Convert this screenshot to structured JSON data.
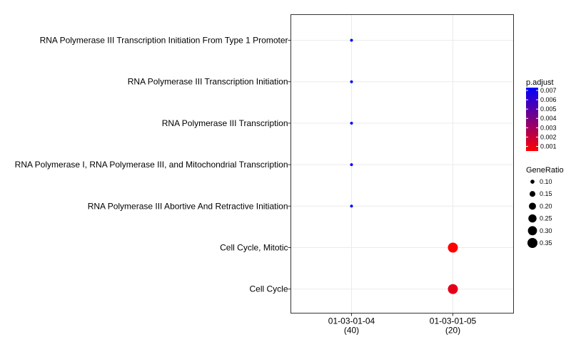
{
  "chart_data": {
    "type": "scatter",
    "title": "",
    "xlabel": "",
    "ylabel": "",
    "x_categories": [
      {
        "label": "01-03-01-04",
        "count": "(40)"
      },
      {
        "label": "01-03-01-05",
        "count": "(20)"
      }
    ],
    "y_categories": [
      "RNA Polymerase III Transcription Initiation From Type 1 Promoter",
      "RNA Polymerase III Transcription Initiation",
      "RNA Polymerase III Transcription",
      "RNA Polymerase I, RNA Polymerase III, and Mitochondrial Transcription",
      "RNA Polymerase III Abortive And Retractive Initiation",
      "Cell Cycle, Mitotic",
      "Cell Cycle"
    ],
    "points": [
      {
        "x": "01-03-01-04",
        "y": "RNA Polymerase III Transcription Initiation From Type 1 Promoter",
        "gene_ratio": 0.075,
        "p_adjust": 0.0072
      },
      {
        "x": "01-03-01-04",
        "y": "RNA Polymerase III Transcription Initiation",
        "gene_ratio": 0.075,
        "p_adjust": 0.0072
      },
      {
        "x": "01-03-01-04",
        "y": "RNA Polymerase III Transcription",
        "gene_ratio": 0.075,
        "p_adjust": 0.0072
      },
      {
        "x": "01-03-01-04",
        "y": "RNA Polymerase I, RNA Polymerase III, and Mitochondrial Transcription",
        "gene_ratio": 0.075,
        "p_adjust": 0.0072
      },
      {
        "x": "01-03-01-04",
        "y": "RNA Polymerase III Abortive And Retractive Initiation",
        "gene_ratio": 0.075,
        "p_adjust": 0.0072
      },
      {
        "x": "01-03-01-05",
        "y": "Cell Cycle, Mitotic",
        "gene_ratio": 0.35,
        "p_adjust": 0.0005
      },
      {
        "x": "01-03-01-05",
        "y": "Cell Cycle",
        "gene_ratio": 0.35,
        "p_adjust": 0.0012
      }
    ],
    "color_legend": {
      "title": "p.adjust",
      "ticks": [
        "0.007",
        "0.006",
        "0.005",
        "0.004",
        "0.003",
        "0.002",
        "0.001"
      ],
      "tick_values": [
        0.007,
        0.006,
        0.005,
        0.004,
        0.003,
        0.002,
        0.001
      ],
      "range": [
        0.0005,
        0.0073
      ],
      "low_color": "#ff0000",
      "high_color": "#0000ff"
    },
    "size_legend": {
      "title": "GeneRatio",
      "ticks": [
        "0.10",
        "0.15",
        "0.20",
        "0.25",
        "0.30",
        "0.35"
      ],
      "tick_values": [
        0.1,
        0.15,
        0.2,
        0.25,
        0.3,
        0.35
      ],
      "range": [
        0.075,
        0.35
      ]
    },
    "grid": true,
    "legend_position": "right"
  }
}
